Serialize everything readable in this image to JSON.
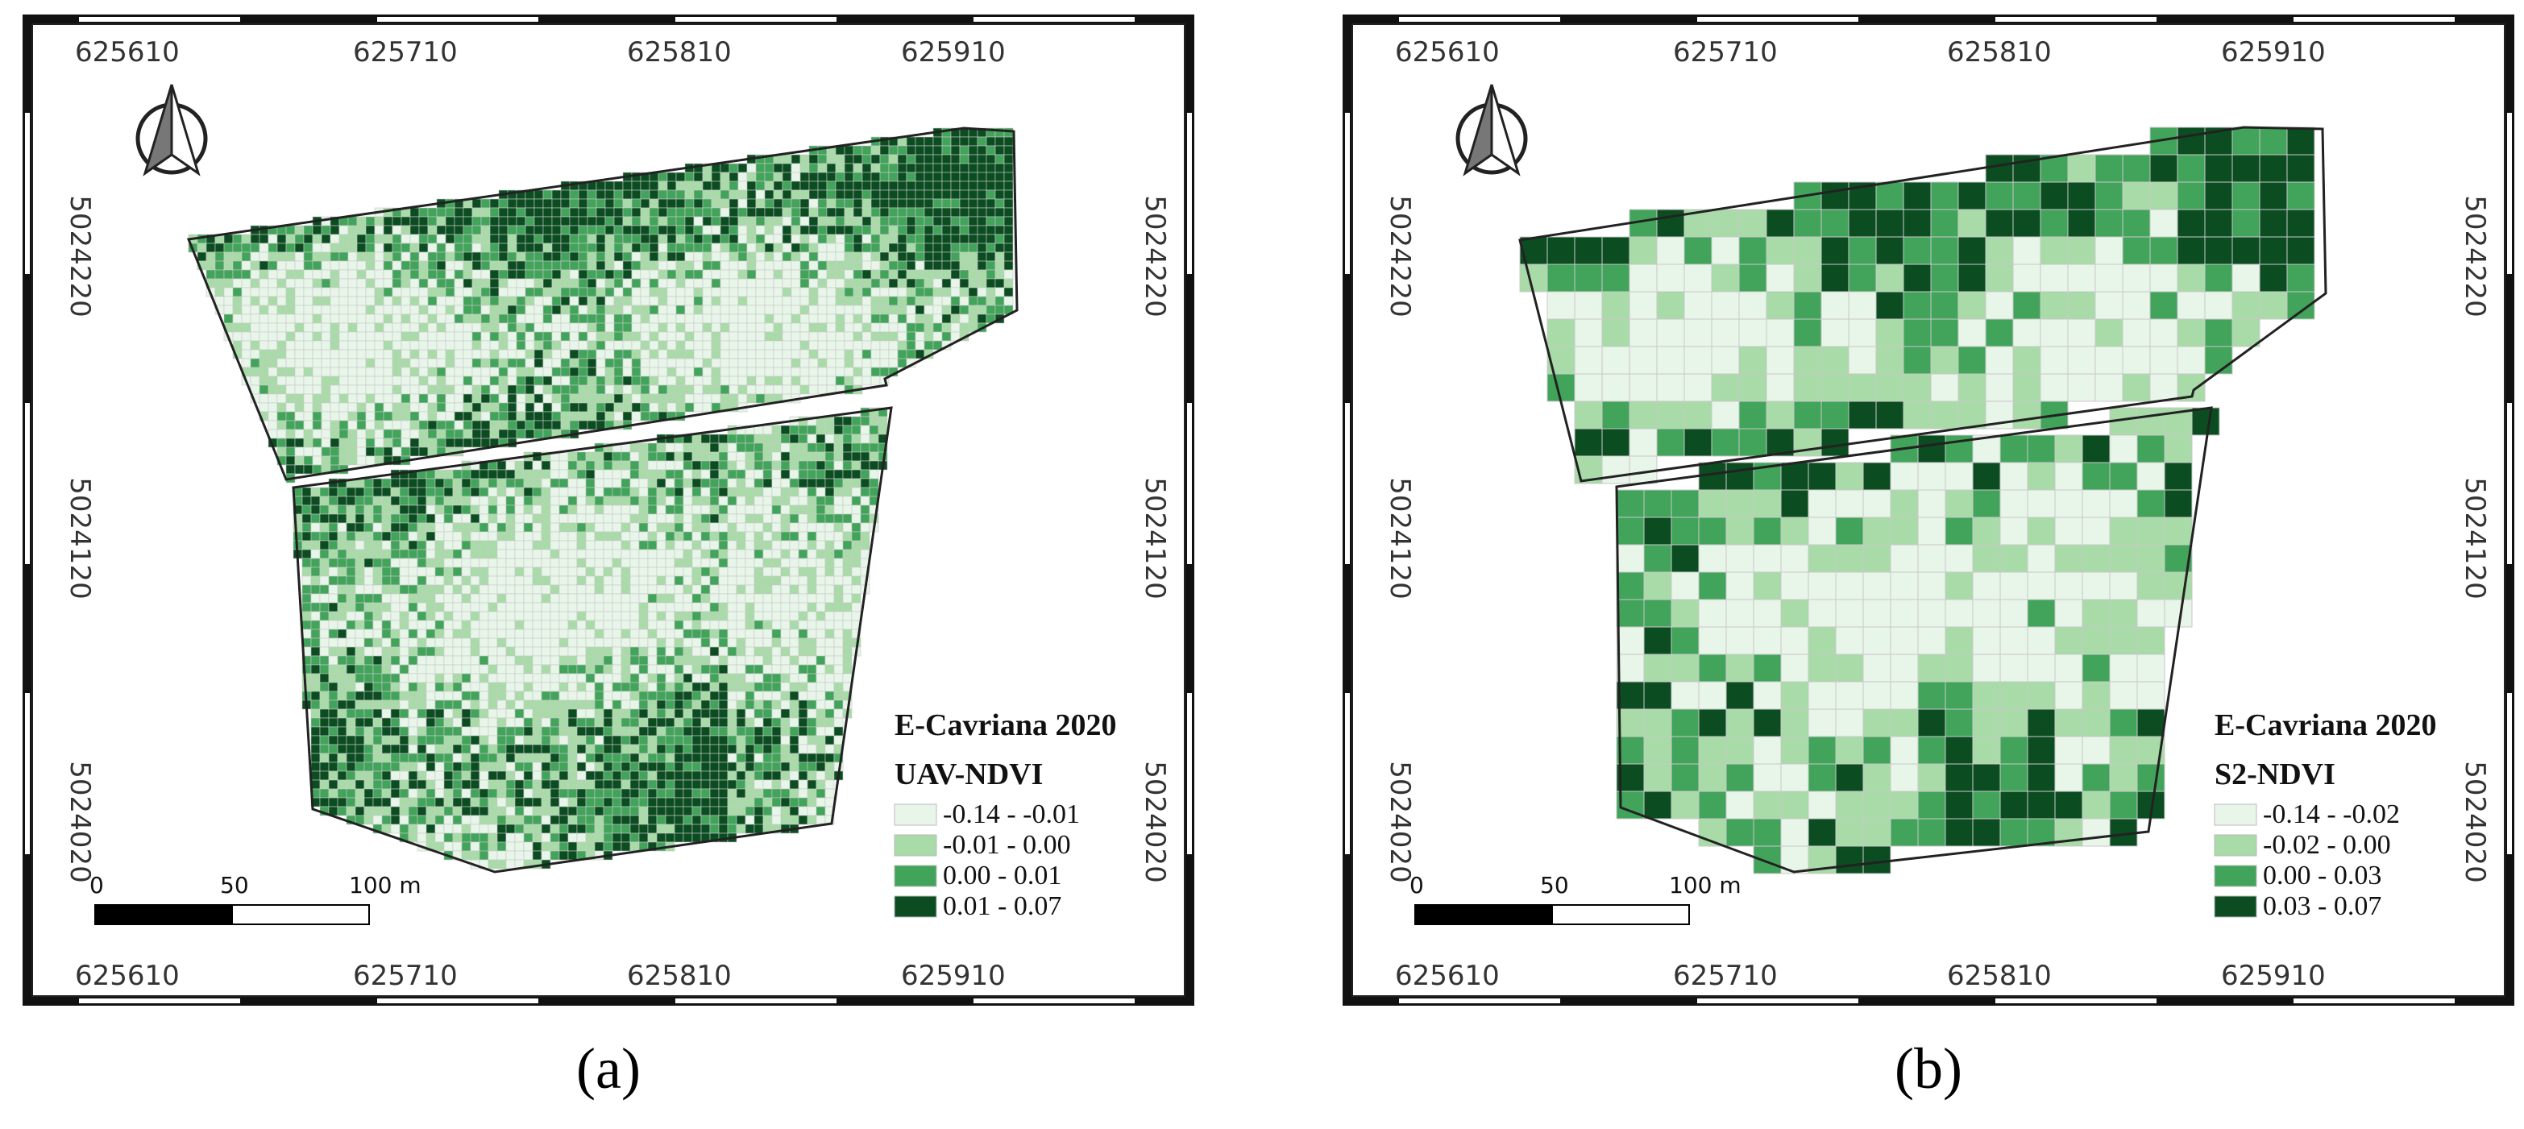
{
  "panels": [
    {
      "caption": "(a)",
      "x_labels": [
        "625610",
        "625710",
        "625810",
        "625910"
      ],
      "y_labels": [
        "5024220",
        "5024120",
        "5024020"
      ],
      "legend": {
        "title": "E-Cavriana 2020",
        "subtitle": "UAV-NDVI",
        "items": [
          {
            "label": "-0.14 - -0.01",
            "color": "#e8f5e9"
          },
          {
            "label": "-0.01 - 0.00",
            "color": "#a8dba8"
          },
          {
            "label": "0.00 - 0.01",
            "color": "#41a45a"
          },
          {
            "label": "0.01 - 0.07",
            "color": "#0b4d21"
          }
        ]
      },
      "scale_bar": {
        "labels": [
          "0",
          "50",
          "100 m"
        ]
      },
      "grid_resolution": "fine"
    },
    {
      "caption": "(b)",
      "x_labels": [
        "625610",
        "625710",
        "625810",
        "625910"
      ],
      "y_labels": [
        "5024220",
        "5024120",
        "5024020"
      ],
      "legend": {
        "title": "E-Cavriana 2020",
        "subtitle": "S2-NDVI",
        "items": [
          {
            "label": "-0.14 - -0.02",
            "color": "#e8f5e9"
          },
          {
            "label": "-0.02 - 0.00",
            "color": "#a8dba8"
          },
          {
            "label": "0.00 - 0.03",
            "color": "#41a45a"
          },
          {
            "label": "0.03 - 0.07",
            "color": "#0b4d21"
          }
        ]
      },
      "scale_bar": {
        "labels": [
          "0",
          "50",
          "100 m"
        ]
      },
      "grid_resolution": "coarse"
    }
  ]
}
